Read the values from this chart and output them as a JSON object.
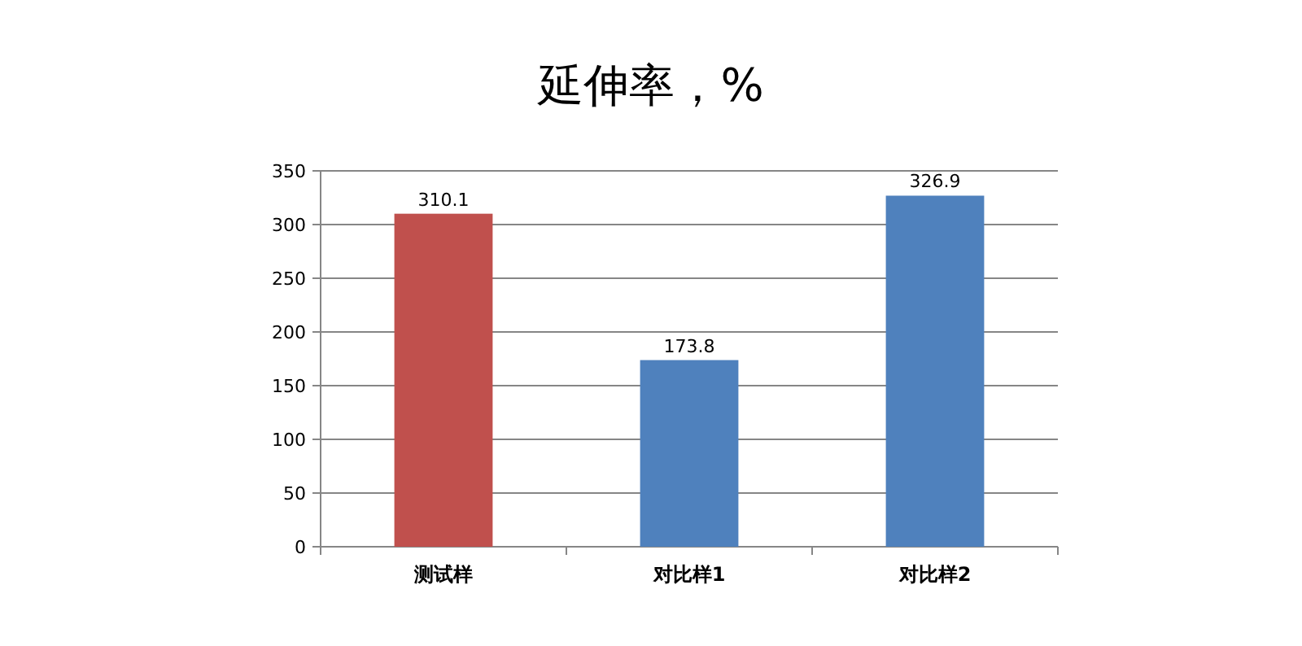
{
  "chart_data": {
    "type": "bar",
    "title": "延伸率，%",
    "categories": [
      "测试样",
      "对比样1",
      "对比样2"
    ],
    "values": [
      310.1,
      173.8,
      326.9
    ],
    "colors": [
      "#c0504d",
      "#4f81bd",
      "#4f81bd"
    ],
    "ylim": [
      0,
      350
    ],
    "yticks": [
      0,
      50,
      100,
      150,
      200,
      250,
      300,
      350
    ],
    "grid": "y",
    "data_labels": true
  }
}
